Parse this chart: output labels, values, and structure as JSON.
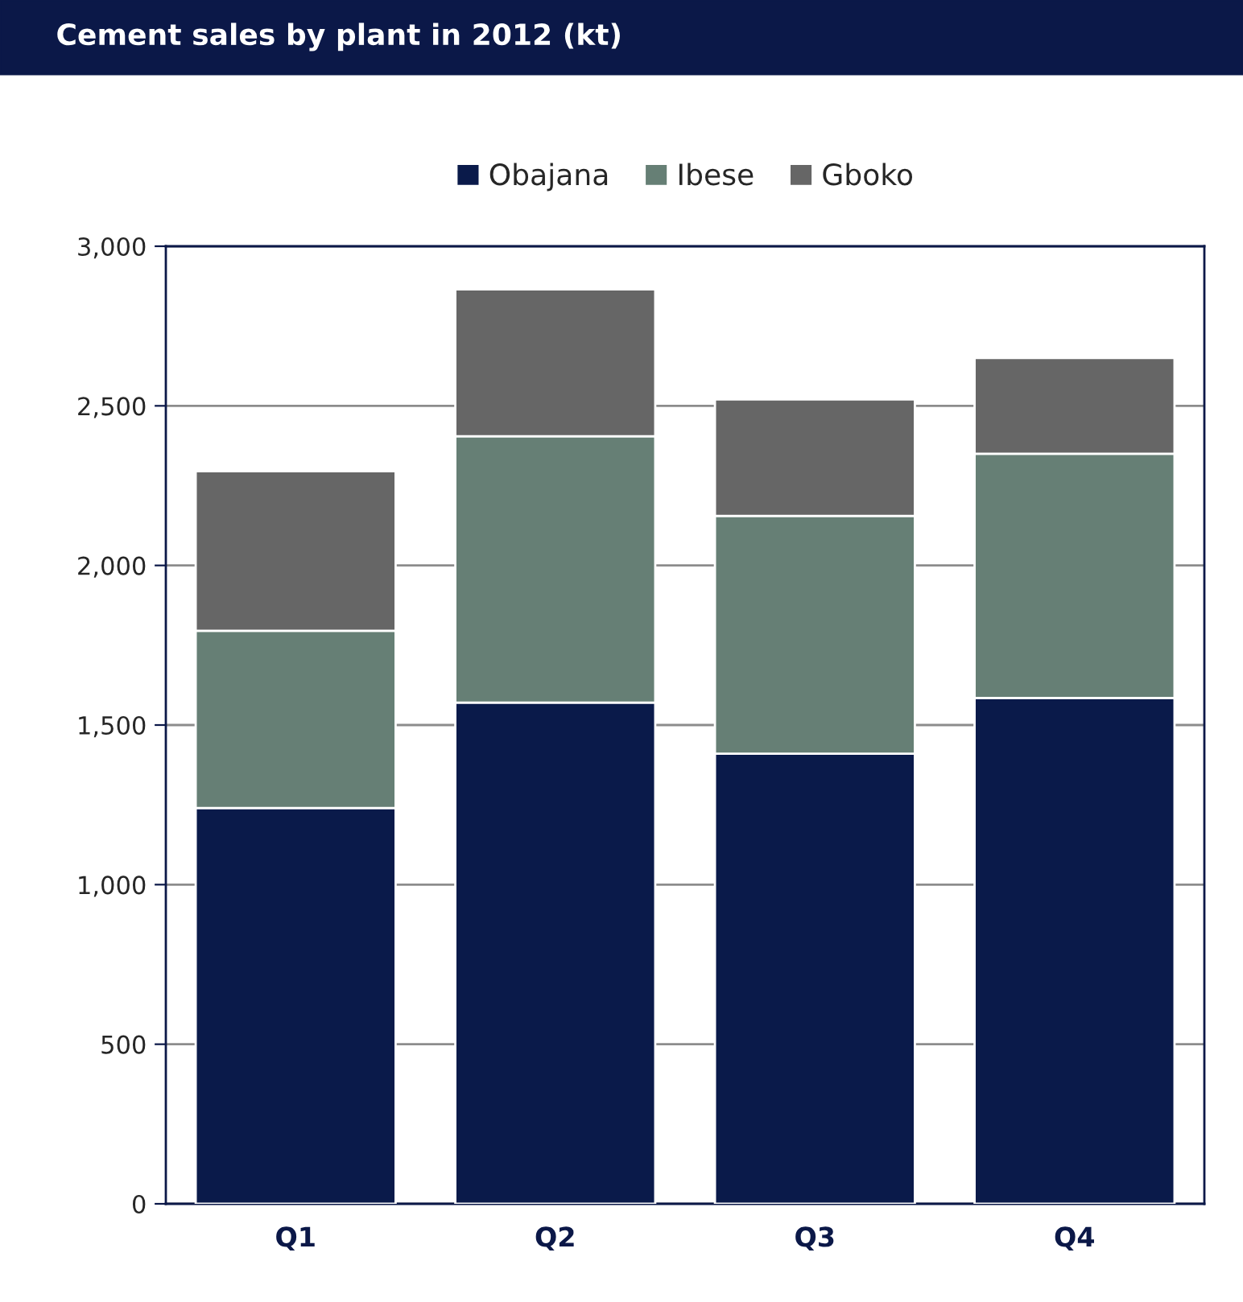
{
  "chart_data": {
    "type": "bar",
    "title": "Cement sales by plant in 2012 (kt)",
    "categories": [
      "Q1",
      "Q2",
      "Q3",
      "Q4"
    ],
    "series": [
      {
        "name": "Obajana",
        "color": "#0a1a4a",
        "values": [
          1240,
          1570,
          1410,
          1585
        ]
      },
      {
        "name": "Ibese",
        "color": "#667f75",
        "values": [
          555,
          835,
          745,
          765
        ]
      },
      {
        "name": "Gboko",
        "color": "#666666",
        "values": [
          500,
          460,
          365,
          300
        ]
      }
    ],
    "stacked": true,
    "ylim": [
      0,
      3000
    ],
    "yticks": [
      {
        "value": 0,
        "label": "0"
      },
      {
        "value": 500,
        "label": "500"
      },
      {
        "value": 1000,
        "label": "1,000"
      },
      {
        "value": 1500,
        "label": "1,500"
      },
      {
        "value": 2000,
        "label": "2,000"
      },
      {
        "value": 2500,
        "label": "2,500"
      },
      {
        "value": 3000,
        "label": "3,000"
      }
    ],
    "grid": "y",
    "legend": "top"
  }
}
